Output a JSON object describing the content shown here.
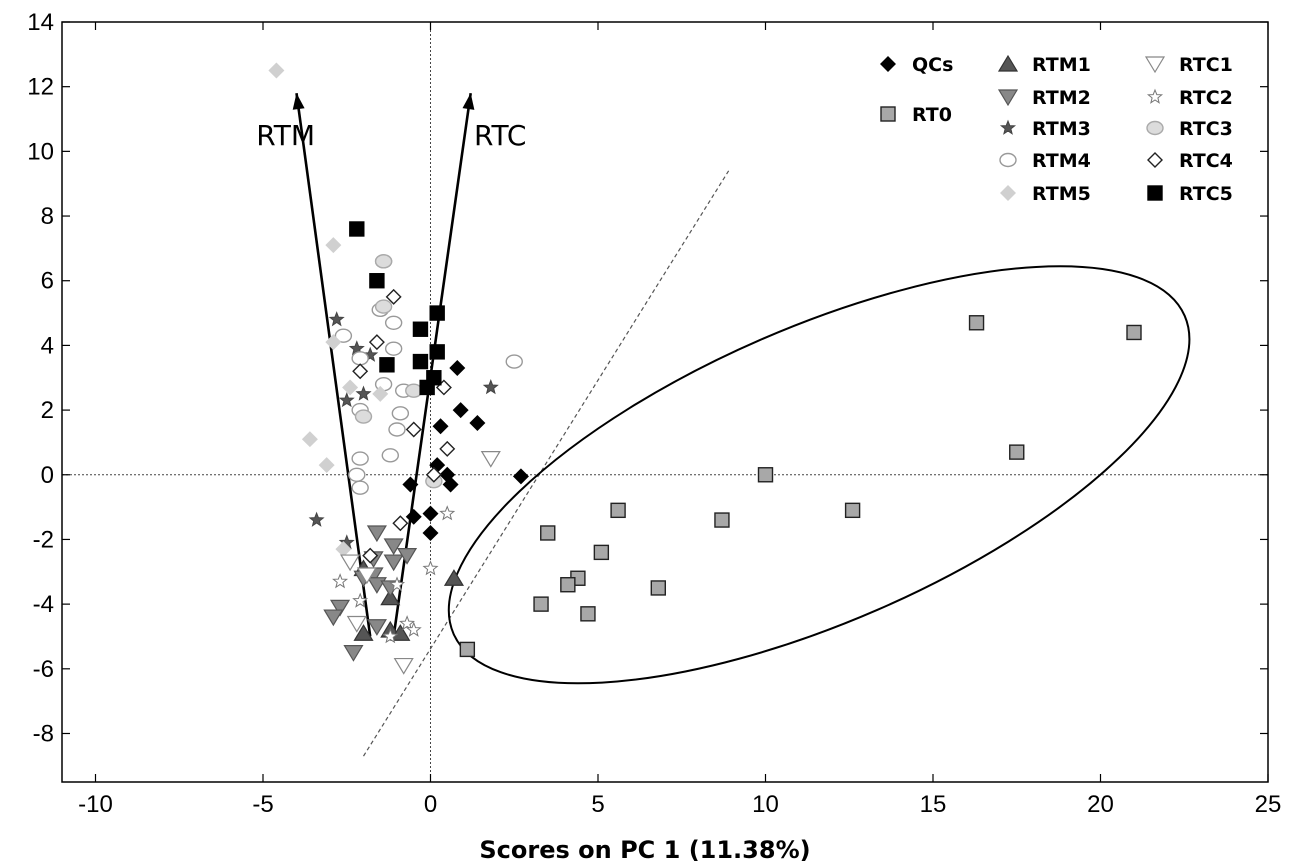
{
  "chart_data": {
    "type": "scatter",
    "title": "",
    "xlabel": "Scores on PC 1 (11.38%)",
    "ylabel": "",
    "xlim": [
      -11,
      25
    ],
    "ylim": [
      -9.5,
      14
    ],
    "x_ticks": [
      -10,
      -5,
      0,
      5,
      10,
      15,
      20,
      25
    ],
    "y_ticks": [
      14,
      12,
      10,
      8,
      6,
      4,
      2,
      0,
      -2,
      -4,
      -6,
      -8
    ],
    "x_tick_labels": [
      "-10",
      "-5",
      "0",
      "5",
      "10",
      "15",
      "20",
      "25"
    ],
    "y_tick_labels": [
      "14",
      "12",
      "10",
      "8",
      "6",
      "4",
      "2",
      "0",
      "-2",
      "-4",
      "-6",
      "-8"
    ],
    "grid": false,
    "legend_position": "top-right",
    "reference_lines": {
      "x": 0,
      "y": 0
    },
    "annotations": [
      {
        "text": "RTM",
        "from": [
          -1.8,
          -5
        ],
        "to": [
          -4,
          11.8
        ],
        "label_at": [
          -5.2,
          10.2
        ]
      },
      {
        "text": "RTC",
        "from": [
          -1.1,
          -5
        ],
        "to": [
          1.2,
          11.8
        ],
        "label_at": [
          1.3,
          10.2
        ]
      }
    ],
    "divider_line": {
      "from": [
        -2,
        -8.7
      ],
      "to": [
        8.9,
        9.4
      ],
      "style": "dashed"
    },
    "ellipse": {
      "center": [
        11.6,
        0
      ],
      "rx": 11.9,
      "ry": 4.55,
      "angle_deg": -23.5
    },
    "series": [
      {
        "name": "QCs",
        "marker": "diamond",
        "fill": "#000000",
        "stroke": "#000000",
        "points": [
          [
            0.8,
            3.3
          ],
          [
            0.9,
            2.0
          ],
          [
            1.4,
            1.6
          ],
          [
            0.3,
            1.5
          ],
          [
            0.2,
            0.3
          ],
          [
            0.5,
            0.0
          ],
          [
            0.6,
            -0.3
          ],
          [
            -0.6,
            -0.3
          ],
          [
            2.7,
            -0.05
          ],
          [
            0.0,
            -1.2
          ],
          [
            -0.5,
            -1.3
          ],
          [
            0.0,
            -1.8
          ]
        ]
      },
      {
        "name": "RT0",
        "marker": "square",
        "fill": "#a8a8a8",
        "stroke": "#222222",
        "points": [
          [
            16.3,
            4.7
          ],
          [
            21.0,
            4.4
          ],
          [
            17.5,
            0.7
          ],
          [
            10.0,
            0.0
          ],
          [
            12.6,
            -1.1
          ],
          [
            8.7,
            -1.4
          ],
          [
            5.6,
            -1.1
          ],
          [
            3.5,
            -1.8
          ],
          [
            5.1,
            -2.4
          ],
          [
            4.4,
            -3.2
          ],
          [
            4.1,
            -3.4
          ],
          [
            6.8,
            -3.5
          ],
          [
            3.3,
            -4.0
          ],
          [
            4.7,
            -4.3
          ],
          [
            1.1,
            -5.4
          ]
        ]
      },
      {
        "name": "RTM1",
        "marker": "triangle-up",
        "fill": "#555555",
        "stroke": "#333333",
        "points": [
          [
            0.7,
            -3.2
          ],
          [
            -2.0,
            -2.9
          ],
          [
            -1.2,
            -3.8
          ],
          [
            -2.0,
            -4.9
          ],
          [
            -1.2,
            -4.8
          ],
          [
            -0.9,
            -4.9
          ]
        ]
      },
      {
        "name": "RTM2",
        "marker": "triangle-down",
        "fill": "#888888",
        "stroke": "#555555",
        "points": [
          [
            -1.6,
            -1.8
          ],
          [
            -1.1,
            -2.2
          ],
          [
            -1.7,
            -2.6
          ],
          [
            -1.1,
            -2.7
          ],
          [
            -0.7,
            -2.5
          ],
          [
            -1.7,
            -3.1
          ],
          [
            -1.6,
            -3.4
          ],
          [
            -1.2,
            -3.5
          ],
          [
            -2.0,
            -3.2
          ],
          [
            -2.7,
            -4.1
          ],
          [
            -2.9,
            -4.4
          ],
          [
            -1.6,
            -4.7
          ],
          [
            -2.3,
            -5.5
          ]
        ]
      },
      {
        "name": "RTM3",
        "marker": "star",
        "fill": "#555555",
        "stroke": "#444444",
        "points": [
          [
            -2.8,
            4.8
          ],
          [
            -2.2,
            3.9
          ],
          [
            -1.8,
            3.7
          ],
          [
            -2.0,
            2.5
          ],
          [
            -2.5,
            2.3
          ],
          [
            1.8,
            2.7
          ],
          [
            -3.4,
            -1.4
          ],
          [
            -2.5,
            -2.1
          ]
        ]
      },
      {
        "name": "RTM4",
        "marker": "circle",
        "fill": "#ffffff",
        "stroke": "#999999",
        "points": [
          [
            -1.4,
            6.6
          ],
          [
            -1.5,
            5.1
          ],
          [
            -1.1,
            4.7
          ],
          [
            -2.6,
            4.3
          ],
          [
            -2.1,
            3.6
          ],
          [
            -1.4,
            2.8
          ],
          [
            -1.1,
            3.9
          ],
          [
            -0.8,
            2.6
          ],
          [
            -2.1,
            2.0
          ],
          [
            -0.9,
            1.9
          ],
          [
            -1.0,
            1.4
          ],
          [
            -1.2,
            0.6
          ],
          [
            -2.1,
            0.5
          ],
          [
            -2.2,
            0.0
          ],
          [
            -2.1,
            -0.4
          ],
          [
            2.5,
            3.5
          ]
        ]
      },
      {
        "name": "RTM5",
        "marker": "diamond",
        "fill": "#d0d0d0",
        "stroke": "#d0d0d0",
        "points": [
          [
            -4.6,
            12.5
          ],
          [
            -2.9,
            7.1
          ],
          [
            -2.9,
            4.1
          ],
          [
            -2.4,
            2.7
          ],
          [
            -1.5,
            2.5
          ],
          [
            -3.6,
            1.1
          ],
          [
            -3.1,
            0.3
          ],
          [
            -2.6,
            -2.3
          ]
        ]
      },
      {
        "name": "RTC1",
        "marker": "triangle-down-open",
        "fill": "#ffffff",
        "stroke": "#888888",
        "points": [
          [
            1.8,
            0.5
          ],
          [
            -2.4,
            -2.7
          ],
          [
            -1.9,
            -3.1
          ],
          [
            -2.2,
            -4.6
          ],
          [
            -0.8,
            -5.9
          ]
        ]
      },
      {
        "name": "RTC2",
        "marker": "star-open",
        "fill": "#ffffff",
        "stroke": "#777777",
        "points": [
          [
            0.5,
            -1.2
          ],
          [
            0.0,
            -2.9
          ],
          [
            -2.7,
            -3.3
          ],
          [
            -1.0,
            -3.4
          ],
          [
            -2.1,
            -3.9
          ],
          [
            -0.7,
            -4.6
          ],
          [
            -0.5,
            -4.8
          ],
          [
            -1.2,
            -5.0
          ]
        ]
      },
      {
        "name": "RTC3",
        "marker": "circle",
        "fill": "#dcdcdc",
        "stroke": "#aaaaaa",
        "points": [
          [
            -1.4,
            6.6
          ],
          [
            -1.4,
            5.2
          ],
          [
            -0.5,
            2.6
          ],
          [
            -2.0,
            1.8
          ],
          [
            0.1,
            -0.2
          ]
        ]
      },
      {
        "name": "RTC4",
        "marker": "diamond-open",
        "fill": "#ffffff",
        "stroke": "#222222",
        "points": [
          [
            -1.1,
            5.5
          ],
          [
            -1.6,
            4.1
          ],
          [
            -2.1,
            3.2
          ],
          [
            0.4,
            2.7
          ],
          [
            -0.5,
            1.4
          ],
          [
            0.5,
            0.8
          ],
          [
            0.1,
            0.0
          ],
          [
            -0.9,
            -1.5
          ],
          [
            -1.8,
            -2.5
          ]
        ]
      },
      {
        "name": "RTC5",
        "marker": "square",
        "fill": "#000000",
        "stroke": "#000000",
        "points": [
          [
            -2.2,
            7.6
          ],
          [
            -1.6,
            6.0
          ],
          [
            0.2,
            5.0
          ],
          [
            -0.3,
            4.5
          ],
          [
            0.2,
            3.8
          ],
          [
            -0.3,
            3.5
          ],
          [
            -1.3,
            3.4
          ],
          [
            0.1,
            3.0
          ],
          [
            -0.1,
            2.7
          ]
        ]
      }
    ]
  }
}
